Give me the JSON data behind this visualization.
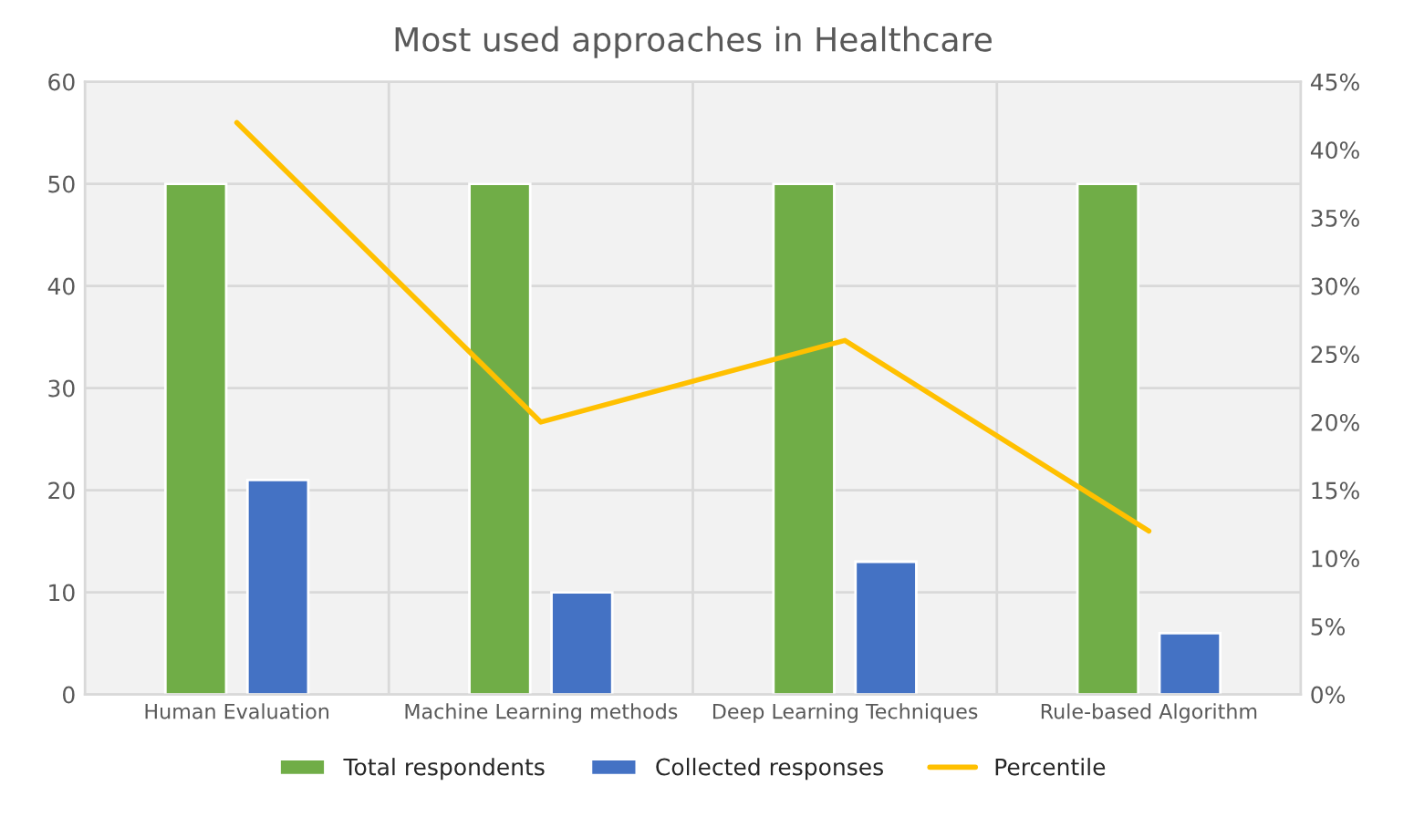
{
  "chart_data": {
    "type": "bar",
    "title": "Most used approaches in Healthcare",
    "categories": [
      "Human Evaluation",
      "Machine Learning methods",
      "Deep Learning Techniques",
      "Rule-based Algorithm"
    ],
    "series": [
      {
        "name": "Total respondents",
        "color": "#70ad47",
        "values": [
          50,
          50,
          50,
          50
        ]
      },
      {
        "name": "Collected responses",
        "color": "#4472c4",
        "values": [
          21,
          10,
          13,
          6
        ]
      },
      {
        "name": "Percentile",
        "type": "line",
        "axis": "y2",
        "color": "#ffc000",
        "values": [
          42,
          20,
          26,
          12
        ]
      }
    ],
    "ylim": [
      0,
      60
    ],
    "yticks": [
      0,
      10,
      20,
      30,
      40,
      50,
      60
    ],
    "y2lim": [
      0,
      45
    ],
    "y2ticks": [
      {
        "value": 0,
        "label": "0%"
      },
      {
        "value": 5,
        "label": "5%"
      },
      {
        "value": 10,
        "label": "10%"
      },
      {
        "value": 15,
        "label": "15%"
      },
      {
        "value": 20,
        "label": "20%"
      },
      {
        "value": 25,
        "label": "25%"
      },
      {
        "value": 30,
        "label": "30%"
      },
      {
        "value": 35,
        "label": "35%"
      },
      {
        "value": 40,
        "label": "40%"
      },
      {
        "value": 45,
        "label": "45%"
      }
    ],
    "grid": true,
    "legend": "bottom",
    "marker": "none",
    "line_style": "solid"
  }
}
